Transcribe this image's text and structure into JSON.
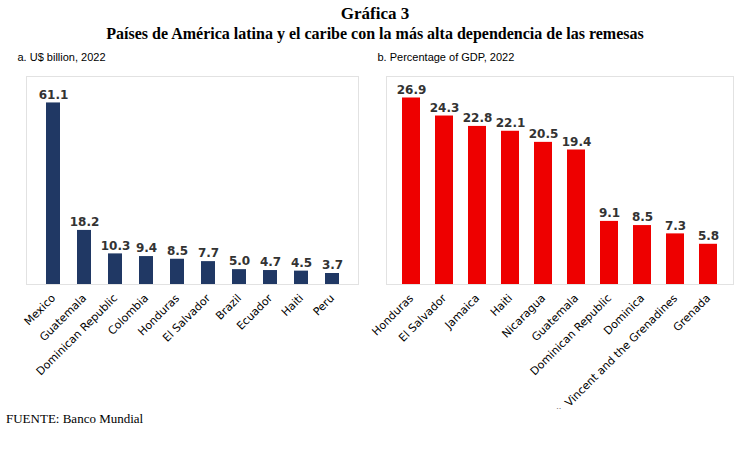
{
  "title": "Gráfica 3",
  "subtitle": "Países de América latina y el caribe con la más alta dependencia de las remesas",
  "source": "FUENTE: Banco Mundial",
  "chart_data": [
    {
      "type": "bar",
      "title": "a. U$ billion, 2022",
      "categories": [
        "Mexico",
        "Guatemala",
        "Dominican Republic",
        "Colombia",
        "Honduras",
        "El Salvador",
        "Brazil",
        "Ecuador",
        "Haiti",
        "Peru"
      ],
      "values": [
        61.1,
        18.2,
        10.3,
        9.4,
        8.5,
        7.7,
        5.0,
        4.7,
        4.5,
        3.7
      ],
      "value_labels": [
        "61.1",
        "18.2",
        "10.3",
        "9.4",
        "8.5",
        "7.7",
        "5.0",
        "4.7",
        "4.5",
        "3.7"
      ],
      "color": "#203864",
      "ylim": [
        0,
        70
      ],
      "data_labels": true,
      "tick_labels": "x"
    },
    {
      "type": "bar",
      "title": "b. Percentage of GDP, 2022",
      "categories": [
        "Honduras",
        "El Salvador",
        "Jamaica",
        "Haiti",
        "Nicaragua",
        "Guatemala",
        "Dominican Republic",
        "Dominica",
        "St. Vincent and the Grenadines",
        "Grenada"
      ],
      "values": [
        26.9,
        24.3,
        22.8,
        22.1,
        20.5,
        19.4,
        9.1,
        8.5,
        7.3,
        5.8
      ],
      "value_labels": [
        "26.9",
        "24.3",
        "22.8",
        "22.1",
        "20.5",
        "19.4",
        "9.1",
        "8.5",
        "7.3",
        "5.8"
      ],
      "color": "#ee0000",
      "ylim": [
        0,
        30
      ],
      "data_labels": true,
      "tick_labels": "x"
    }
  ]
}
